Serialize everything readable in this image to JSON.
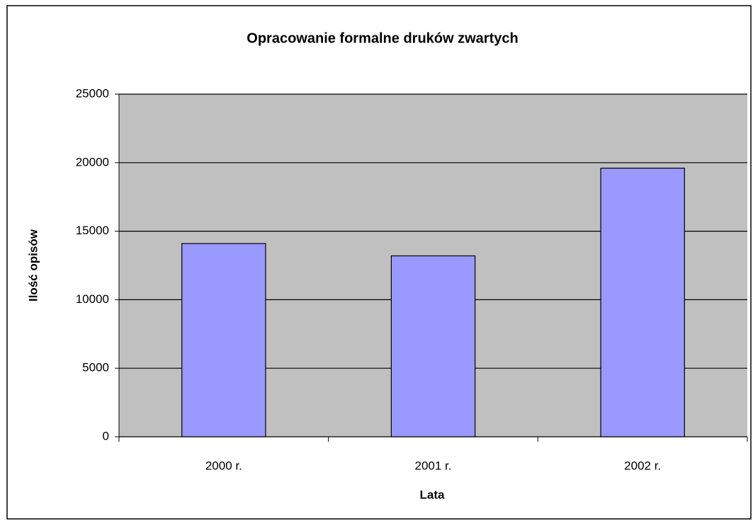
{
  "chart_data": {
    "type": "bar",
    "title": "Opracowanie formalne druków zwartych",
    "x_label": "Lata",
    "y_label": "Ilość opisów",
    "categories": [
      "2000 r.",
      "2001 r.",
      "2002 r."
    ],
    "values": [
      14100,
      13200,
      19600
    ],
    "color": "#9999ff",
    "plot_background": "#c0c0c0",
    "ylim": [
      0,
      25000
    ],
    "yticks": [
      0,
      5000,
      10000,
      15000,
      20000,
      25000
    ],
    "grid": true
  }
}
